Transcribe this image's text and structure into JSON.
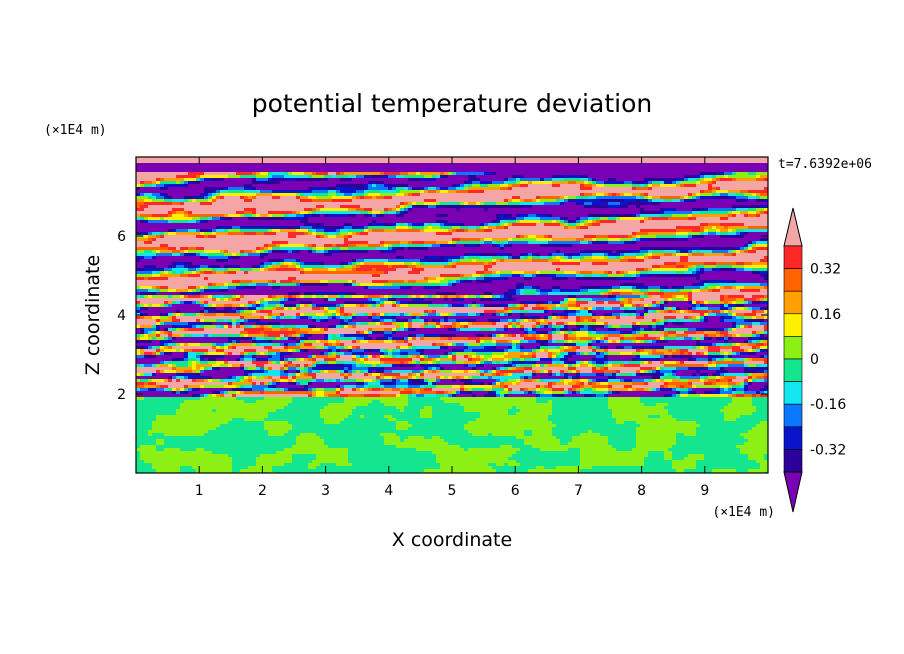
{
  "chart_data": {
    "type": "heatmap",
    "title": "potential temperature deviation",
    "xlabel": "X coordinate",
    "ylabel": "Z coordinate",
    "x_unit": "(×1E4 m)",
    "y_unit": "(×1E4 m)",
    "time_label": "t=7.6392e+06",
    "xlim": [
      0,
      10
    ],
    "ylim": [
      0,
      8
    ],
    "x_ticks": [
      "1",
      "2",
      "3",
      "4",
      "5",
      "6",
      "7",
      "8",
      "9"
    ],
    "y_ticks": [
      "2",
      "4",
      "6"
    ],
    "colorbar": {
      "levels": [
        -0.4,
        -0.32,
        -0.24,
        -0.16,
        -0.08,
        0,
        0.08,
        0.16,
        0.24,
        0.32,
        0.4
      ],
      "labels": [
        "0.32",
        "0.16",
        "0",
        "-0.16",
        "-0.32"
      ],
      "colors": [
        "#7a00b4",
        "#2c0099",
        "#0a14c8",
        "#0a78ff",
        "#14e6f0",
        "#14e690",
        "#8cf014",
        "#fff000",
        "#ffa000",
        "#ff6400",
        "#ff2828",
        "#f4a6a6"
      ],
      "extend": "both"
    },
    "regions": [
      {
        "z_range": [
          0,
          1.95
        ],
        "description_values": "near zero, mixing of -0.08..0 and 0..0.08 bands"
      },
      {
        "z_range": [
          1.95,
          4.5
        ],
        "description_values": "strongly mixed, full range -0.40..0.40"
      },
      {
        "z_range": [
          4.5,
          8
        ],
        "description_values": "alternating layers of >0.40 and <-0.40 with thin transitions"
      }
    ]
  }
}
